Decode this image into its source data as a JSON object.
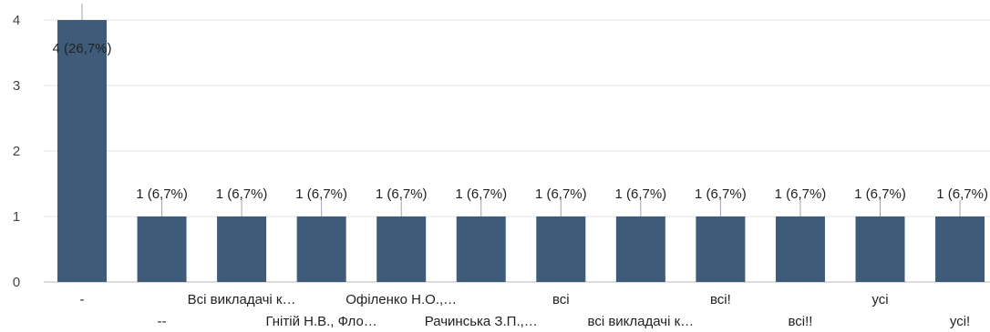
{
  "chart_data": {
    "type": "bar",
    "categories": [
      "-",
      "--",
      "Всі викладачі к…",
      "Гнітій Н.В., Фло…",
      "Офіленко Н.О.,…",
      "Рачинська З.П.,…",
      "всі",
      "всі викладачі к…",
      "всі!",
      "всі!!",
      "усі",
      "усі!"
    ],
    "values": [
      4,
      1,
      1,
      1,
      1,
      1,
      1,
      1,
      1,
      1,
      1,
      1
    ],
    "data_labels": [
      "4 (26,7%)",
      "1 (6,7%)",
      "1 (6,7%)",
      "1 (6,7%)",
      "1 (6,7%)",
      "1 (6,7%)",
      "1 (6,7%)",
      "1 (6,7%)",
      "1 (6,7%)",
      "1 (6,7%)",
      "1 (6,7%)",
      "1 (6,7%)"
    ],
    "yticks": [
      "0",
      "1",
      "2",
      "3",
      "4"
    ],
    "ylim": [
      0,
      4
    ],
    "grid": true,
    "bar_color": "#3f5b7a",
    "title": "",
    "xlabel": "",
    "ylabel": ""
  }
}
